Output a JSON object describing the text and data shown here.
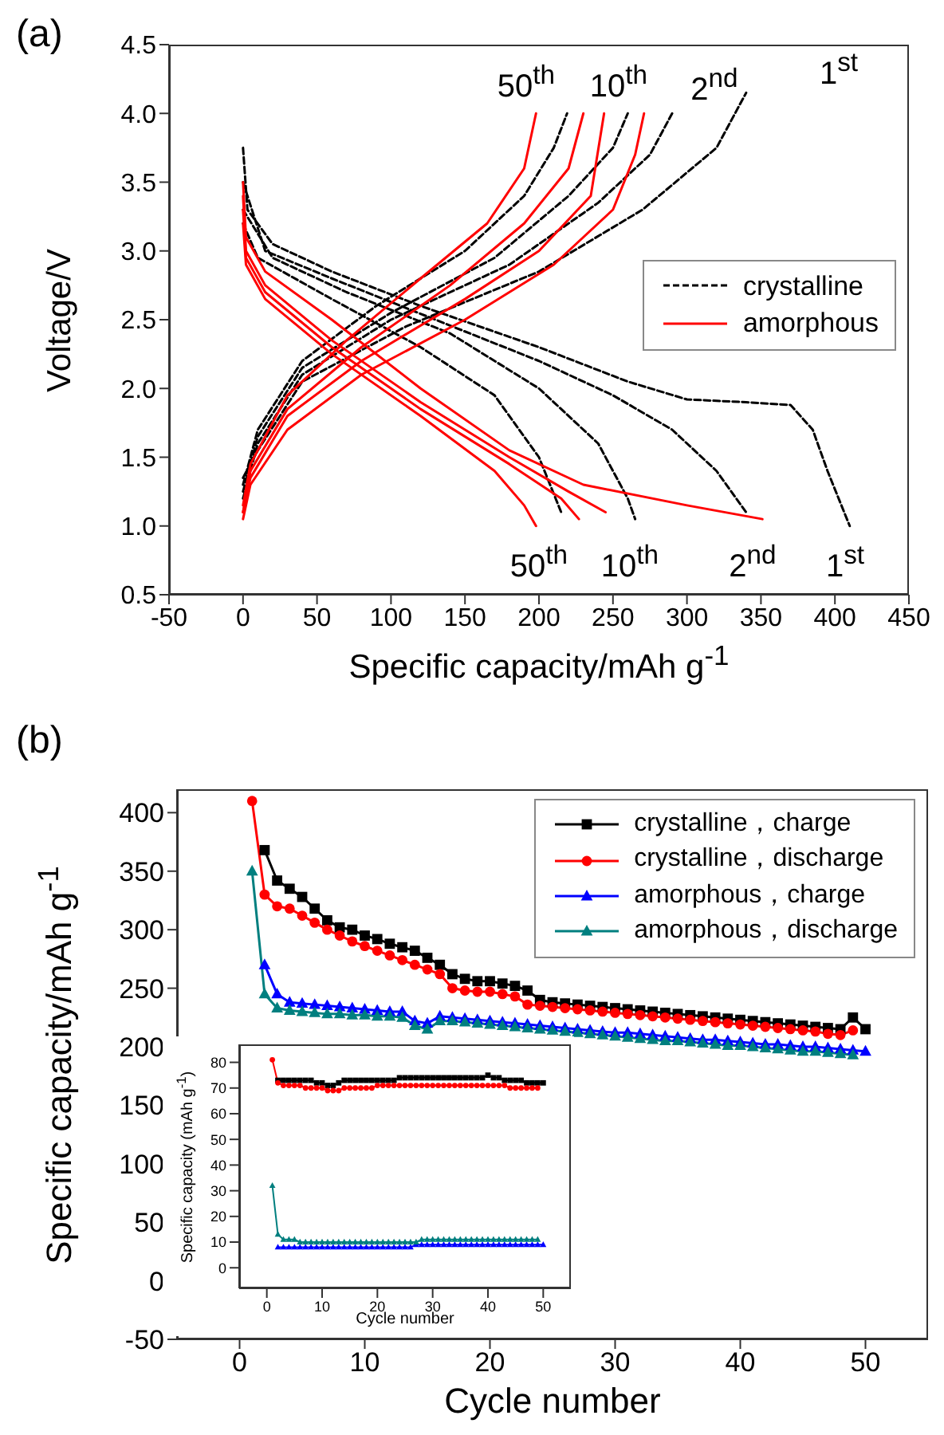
{
  "chart_data": [
    {
      "type": "line",
      "title": "(a)",
      "xlabel": "Specific capacity/mAh g$^{-1}$",
      "ylabel": "Voltage/V",
      "xlim": [
        -50,
        450
      ],
      "xticks": [
        -50,
        0,
        50,
        100,
        150,
        200,
        250,
        300,
        350,
        400,
        450
      ],
      "ylim": [
        0.5,
        4.5
      ],
      "yticks": [
        0.5,
        {
          "value": 1,
          "label": "1.0"
        },
        1.5,
        {
          "value": 2,
          "label": "2.0"
        },
        2.5,
        {
          "value": 3,
          "label": "3.0"
        },
        3.5,
        {
          "value": 4,
          "label": "4.0"
        },
        4.5
      ],
      "legend": "right",
      "series": [
        {
          "name": "crystalline",
          "color": "#000000",
          "line_style": "dashed",
          "x": [
            0,
            3,
            20,
            60,
            120,
            200,
            260,
            300,
            340,
            370,
            385,
            395,
            410
          ],
          "values": [
            3.75,
            3.3,
            3.05,
            2.85,
            2.6,
            2.3,
            2.05,
            1.92,
            1.9,
            1.88,
            1.7,
            1.4,
            1.0
          ]
        },
        {
          "color": "#000000",
          "line_style": "dashed",
          "x": [
            0,
            15,
            60,
            130,
            200,
            250,
            290,
            320,
            340
          ],
          "values": [
            3.5,
            3.0,
            2.8,
            2.5,
            2.2,
            1.95,
            1.7,
            1.4,
            1.1
          ]
        },
        {
          "color": "#000000",
          "line_style": "dashed",
          "x": [
            0,
            20,
            70,
            140,
            200,
            240,
            260,
            265
          ],
          "values": [
            3.3,
            2.95,
            2.7,
            2.4,
            2.0,
            1.6,
            1.2,
            1.05
          ]
        },
        {
          "color": "#000000",
          "line_style": "dashed",
          "x": [
            0,
            10,
            60,
            120,
            170,
            200,
            215
          ],
          "values": [
            3.2,
            2.95,
            2.65,
            2.3,
            1.95,
            1.5,
            1.1
          ]
        },
        {
          "color": "#000000",
          "line_style": "dashed",
          "x": [
            0,
            10,
            40,
            110,
            200,
            270,
            320,
            340
          ],
          "values": [
            1.35,
            1.55,
            2.05,
            2.45,
            2.85,
            3.3,
            3.75,
            4.15
          ]
        },
        {
          "color": "#000000",
          "line_style": "dashed",
          "x": [
            0,
            10,
            40,
            100,
            180,
            240,
            275,
            290
          ],
          "values": [
            1.2,
            1.6,
            2.1,
            2.5,
            2.9,
            3.35,
            3.7,
            4.0
          ]
        },
        {
          "color": "#000000",
          "line_style": "dashed",
          "x": [
            0,
            10,
            40,
            100,
            170,
            220,
            250,
            260
          ],
          "values": [
            1.25,
            1.65,
            2.15,
            2.55,
            2.95,
            3.4,
            3.75,
            4.0
          ]
        },
        {
          "color": "#000000",
          "line_style": "dashed",
          "x": [
            0,
            10,
            40,
            90,
            150,
            190,
            210,
            219
          ],
          "values": [
            1.3,
            1.7,
            2.2,
            2.6,
            3.0,
            3.4,
            3.75,
            4.0
          ]
        },
        {
          "name": "amorphous",
          "color": "#ff0000",
          "line_style": "solid",
          "x": [
            0,
            5,
            30,
            80,
            150,
            210,
            250,
            265,
            271
          ],
          "values": [
            1.05,
            1.3,
            1.7,
            2.1,
            2.5,
            2.9,
            3.3,
            3.7,
            4.0
          ]
        },
        {
          "color": "#ff0000",
          "line_style": "solid",
          "x": [
            0,
            5,
            30,
            80,
            150,
            200,
            235,
            244
          ],
          "values": [
            1.1,
            1.35,
            1.8,
            2.2,
            2.65,
            3.0,
            3.4,
            4.0
          ]
        },
        {
          "color": "#ff0000",
          "line_style": "solid",
          "x": [
            0,
            5,
            30,
            80,
            140,
            190,
            220,
            230
          ],
          "values": [
            1.1,
            1.4,
            1.85,
            2.3,
            2.75,
            3.2,
            3.6,
            4.0
          ]
        },
        {
          "color": "#ff0000",
          "line_style": "solid",
          "x": [
            0,
            5,
            30,
            70,
            120,
            165,
            190,
            198
          ],
          "values": [
            1.15,
            1.45,
            1.95,
            2.35,
            2.8,
            3.2,
            3.6,
            4.0
          ]
        },
        {
          "color": "#ff0000",
          "line_style": "solid",
          "x": [
            0,
            2,
            15,
            60,
            120,
            180,
            230,
            300,
            351
          ],
          "values": [
            3.5,
            3.1,
            2.85,
            2.5,
            2.0,
            1.55,
            1.3,
            1.15,
            1.05
          ]
        },
        {
          "color": "#ff0000",
          "line_style": "solid",
          "x": [
            0,
            2,
            15,
            60,
            120,
            180,
            220,
            245
          ],
          "values": [
            3.4,
            3.0,
            2.75,
            2.35,
            1.9,
            1.5,
            1.25,
            1.1
          ]
        },
        {
          "color": "#ff0000",
          "line_style": "solid",
          "x": [
            0,
            2,
            15,
            60,
            120,
            180,
            215,
            227
          ],
          "values": [
            3.3,
            2.95,
            2.7,
            2.3,
            1.85,
            1.45,
            1.2,
            1.05
          ]
        },
        {
          "color": "#ff0000",
          "line_style": "solid",
          "x": [
            0,
            2,
            15,
            60,
            120,
            170,
            190,
            198
          ],
          "values": [
            3.2,
            2.9,
            2.65,
            2.25,
            1.8,
            1.4,
            1.15,
            1.0
          ]
        }
      ],
      "annotations": [
        "50$^{th}$",
        "10$^{th}$",
        "2$^{nd}$",
        "1$^{st}$",
        "50$^{th}$",
        "10$^{th}$",
        "2$^{nd}$",
        "1$^{st}$"
      ]
    },
    {
      "type": "line",
      "title": "(b)",
      "xlabel": "Cycle number",
      "ylabel": "Specific capacity/mAh g$^{-1}$",
      "xlim": [
        -5,
        55
      ],
      "xticks": [
        0,
        10,
        20,
        30,
        40,
        50
      ],
      "ylim": [
        -50,
        420
      ],
      "yticks": [
        -50,
        0,
        50,
        100,
        150,
        200,
        250,
        300,
        350,
        400
      ],
      "legend": "top right",
      "x": [
        1,
        2,
        3,
        4,
        5,
        6,
        7,
        8,
        9,
        10,
        11,
        12,
        13,
        14,
        15,
        16,
        17,
        18,
        19,
        20,
        21,
        22,
        23,
        24,
        25,
        26,
        27,
        28,
        29,
        30,
        31,
        32,
        33,
        34,
        35,
        36,
        37,
        38,
        39,
        40,
        41,
        42,
        43,
        44,
        45,
        46,
        47,
        48,
        49,
        50
      ],
      "series": [
        {
          "name": "crystalline，charge",
          "color": "#000000",
          "marker": "square",
          "values": [
            null,
            368,
            342,
            335,
            328,
            318,
            308,
            302,
            300,
            295,
            292,
            288,
            285,
            282,
            276,
            270,
            262,
            258,
            256,
            256,
            254,
            252,
            248,
            240,
            238,
            237,
            236,
            235,
            234,
            233,
            232,
            231,
            230,
            229,
            228,
            227,
            226,
            225,
            224,
            223,
            222,
            221,
            220,
            219,
            218,
            217,
            216,
            215,
            225,
            215
          ]
        },
        {
          "name": "crystalline，discharge",
          "color": "#ff0000",
          "marker": "circle",
          "values": [
            410,
            330,
            320,
            318,
            312,
            306,
            300,
            295,
            290,
            286,
            282,
            278,
            274,
            270,
            266,
            262,
            250,
            248,
            247,
            247,
            245,
            243,
            236,
            235,
            234,
            233,
            232,
            231,
            230,
            229,
            228,
            227,
            226,
            225,
            224,
            223,
            222,
            221,
            220,
            219,
            218,
            217,
            216,
            215,
            214,
            213,
            211,
            210,
            214,
            null
          ]
        },
        {
          "name": "amorphous，charge",
          "color": "#0000ff",
          "marker": "triangle",
          "values": [
            null,
            270,
            245,
            238,
            237,
            236,
            235,
            234,
            233,
            232,
            231,
            230,
            230,
            222,
            220,
            226,
            225,
            224,
            223,
            222,
            221,
            220,
            219,
            218,
            217,
            216,
            215,
            214,
            213,
            212,
            212,
            211,
            210,
            209,
            208,
            207,
            206,
            206,
            205,
            204,
            203,
            202,
            202,
            201,
            200,
            200,
            199,
            198,
            197,
            196
          ]
        },
        {
          "name": "amorphous，discharge",
          "color": "#007f7f",
          "marker": "triangle",
          "values": [
            350,
            245,
            233,
            231,
            230,
            229,
            228,
            228,
            227,
            227,
            226,
            226,
            225,
            218,
            215,
            222,
            222,
            221,
            220,
            219,
            218,
            217,
            216,
            215,
            214,
            213,
            212,
            211,
            210,
            209,
            208,
            207,
            206,
            205,
            205,
            204,
            203,
            202,
            201,
            201,
            200,
            199,
            198,
            197,
            196,
            196,
            195,
            194,
            193,
            null
          ]
        }
      ]
    },
    {
      "type": "line",
      "xlabel": "Cycle number",
      "ylabel": "Specific capacity (mAh g$^{-1}$)",
      "xlim": [
        -5,
        55
      ],
      "xticks": [
        0,
        10,
        20,
        30,
        40,
        50
      ],
      "ylim": [
        -8,
        87
      ],
      "yticks": [
        0,
        10,
        20,
        30,
        40,
        50,
        60,
        70,
        80
      ],
      "x": [
        1,
        2,
        3,
        4,
        5,
        6,
        7,
        8,
        9,
        10,
        11,
        12,
        13,
        14,
        15,
        16,
        17,
        18,
        19,
        20,
        21,
        22,
        23,
        24,
        25,
        26,
        27,
        28,
        29,
        30,
        31,
        32,
        33,
        34,
        35,
        36,
        37,
        38,
        39,
        40,
        41,
        42,
        43,
        44,
        45,
        46,
        47,
        48,
        49,
        50
      ],
      "series": [
        {
          "color": "#000000",
          "marker": "square",
          "values": [
            null,
            73,
            73,
            73,
            73,
            73,
            73,
            73,
            72,
            72,
            71,
            71,
            72,
            73,
            73,
            73,
            73,
            73,
            73,
            73,
            73,
            73,
            73,
            74,
            74,
            74,
            74,
            74,
            74,
            74,
            74,
            74,
            74,
            74,
            74,
            74,
            74,
            74,
            74,
            75,
            74,
            74,
            73,
            73,
            73,
            73,
            72,
            72,
            72,
            72
          ]
        },
        {
          "color": "#ff0000",
          "marker": "circle",
          "values": [
            81,
            72,
            71,
            71,
            71,
            71,
            70,
            70,
            70,
            70,
            69,
            69,
            69,
            70,
            70,
            70,
            70,
            70,
            70,
            71,
            71,
            71,
            71,
            71,
            71,
            71,
            71,
            71,
            71,
            71,
            71,
            71,
            71,
            71,
            71,
            71,
            71,
            71,
            71,
            71,
            71,
            71,
            71,
            70,
            70,
            70,
            70,
            70,
            70,
            null
          ]
        },
        {
          "color": "#0000ff",
          "marker": "triangle",
          "values": [
            null,
            8,
            8,
            8,
            8,
            8,
            8,
            8,
            8,
            8,
            8,
            8,
            8,
            8,
            8,
            8,
            8,
            8,
            8,
            8,
            8,
            8,
            8,
            8,
            8,
            8,
            9,
            9,
            9,
            9,
            9,
            9,
            9,
            9,
            9,
            9,
            9,
            9,
            9,
            9,
            9,
            9,
            9,
            9,
            9,
            9,
            9,
            9,
            9,
            9
          ]
        },
        {
          "color": "#007f7f",
          "marker": "triangle",
          "values": [
            32,
            13,
            11,
            11,
            11,
            10,
            10,
            10,
            10,
            10,
            10,
            10,
            10,
            10,
            10,
            10,
            10,
            10,
            10,
            10,
            10,
            10,
            10,
            10,
            10,
            10,
            10,
            11,
            11,
            11,
            11,
            11,
            11,
            11,
            11,
            11,
            11,
            11,
            11,
            11,
            11,
            11,
            11,
            11,
            11,
            11,
            11,
            11,
            11,
            null
          ]
        }
      ]
    }
  ]
}
